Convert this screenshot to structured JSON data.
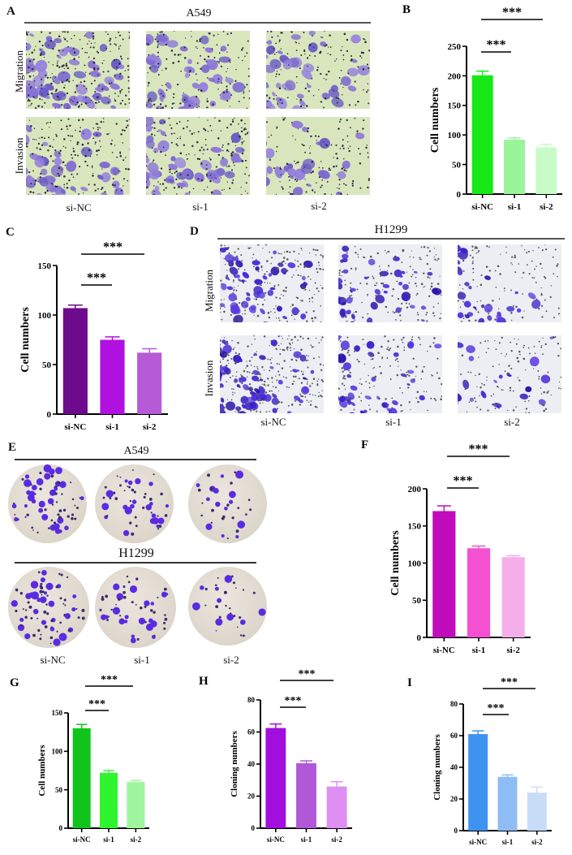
{
  "panels": {
    "A": {
      "letter": "A",
      "title": "A549",
      "rows": [
        "Migration",
        "Invasion"
      ],
      "cols": [
        "si-NC",
        "si-1",
        "si-2"
      ],
      "style": "a549"
    },
    "D": {
      "letter": "D",
      "title": "H1299",
      "rows": [
        "Migration",
        "Invasion"
      ],
      "cols": [
        "si-NC",
        "si-1",
        "si-2"
      ],
      "style": "h1299"
    },
    "E": {
      "letter": "E",
      "title_top": "A549",
      "title_bottom": "H1299",
      "cols": [
        "si-NC",
        "si-1",
        "si-2"
      ]
    }
  },
  "chart_data": [
    {
      "id": "B",
      "letter": "B",
      "type": "bar",
      "categories": [
        "si-NC",
        "si-1",
        "si-2"
      ],
      "values": [
        201,
        92,
        79
      ],
      "errors": [
        7,
        3,
        5
      ],
      "ylabel": "Cell numbers",
      "xlabel": "",
      "ylim": [
        0,
        250
      ],
      "yticks": [
        0,
        50,
        100,
        150,
        200,
        250
      ],
      "colors": [
        "#18e818",
        "#99f599",
        "#c9fbc9"
      ],
      "significance": [
        {
          "from": 0,
          "to": 1,
          "label": "***"
        },
        {
          "from": 0,
          "to": 2,
          "label": "***"
        }
      ],
      "grid": false
    },
    {
      "id": "C",
      "letter": "C",
      "type": "bar",
      "categories": [
        "si-NC",
        "si-1",
        "si-2"
      ],
      "values": [
        107,
        75,
        62
      ],
      "errors": [
        3,
        3,
        4
      ],
      "ylabel": "Cell numbers",
      "xlabel": "",
      "ylim": [
        0,
        150
      ],
      "yticks": [
        0,
        50,
        100,
        150
      ],
      "colors": [
        "#6e0a8c",
        "#b010e0",
        "#b65ad8"
      ],
      "significance": [
        {
          "from": 0,
          "to": 1,
          "label": "***"
        },
        {
          "from": 0,
          "to": 2,
          "label": "***"
        }
      ],
      "grid": false
    },
    {
      "id": "F",
      "letter": "F",
      "type": "bar",
      "categories": [
        "si-NC",
        "si-1",
        "si-2"
      ],
      "values": [
        170,
        120,
        108
      ],
      "errors": [
        7,
        3,
        2
      ],
      "ylabel": "Cell numbers",
      "xlabel": "",
      "ylim": [
        0,
        200
      ],
      "yticks": [
        0,
        50,
        100,
        150,
        200
      ],
      "colors": [
        "#c00cba",
        "#f54fd2",
        "#f6aeea"
      ],
      "significance": [
        {
          "from": 0,
          "to": 1,
          "label": "***"
        },
        {
          "from": 0,
          "to": 2,
          "label": "***"
        }
      ],
      "grid": false
    },
    {
      "id": "G",
      "letter": "G",
      "type": "bar",
      "categories": [
        "si-NC",
        "si-1",
        "si-2"
      ],
      "values": [
        130,
        72,
        60
      ],
      "errors": [
        5,
        3,
        2
      ],
      "ylabel": "Cell numbers",
      "xlabel": "",
      "ylim": [
        0,
        150
      ],
      "yticks": [
        0,
        50,
        100,
        150
      ],
      "colors": [
        "#10c41c",
        "#2ef52e",
        "#9ef59e"
      ],
      "significance": [
        {
          "from": 0,
          "to": 1,
          "label": "***"
        },
        {
          "from": 0,
          "to": 2,
          "label": "***"
        }
      ],
      "grid": false
    },
    {
      "id": "H",
      "letter": "H",
      "type": "bar",
      "categories": [
        "si-NC",
        "si-1",
        "si-2"
      ],
      "values": [
        62.5,
        40.5,
        26
      ],
      "errors": [
        2.5,
        1.5,
        3
      ],
      "ylabel": "Cloning numbers",
      "xlabel": "",
      "ylim": [
        0,
        80
      ],
      "yticks": [
        0,
        20,
        40,
        60,
        80
      ],
      "colors": [
        "#a20ede",
        "#b058d8",
        "#df8ef2"
      ],
      "significance": [
        {
          "from": 0,
          "to": 1,
          "label": "***"
        },
        {
          "from": 0,
          "to": 2,
          "label": "***"
        }
      ],
      "grid": false
    },
    {
      "id": "I",
      "letter": "I",
      "type": "bar",
      "categories": [
        "si-NC",
        "si-1",
        "si-2"
      ],
      "values": [
        61,
        34,
        24
      ],
      "errors": [
        2,
        1.2,
        3.5
      ],
      "ylabel": "Cloning numbers",
      "xlabel": "",
      "ylim": [
        0,
        80
      ],
      "yticks": [
        0,
        20,
        40,
        60,
        80
      ],
      "colors": [
        "#3f93f0",
        "#8ebdf5",
        "#c8dcf8"
      ],
      "significance": [
        {
          "from": 0,
          "to": 1,
          "label": "***"
        },
        {
          "from": 0,
          "to": 2,
          "label": "***"
        }
      ],
      "grid": false
    }
  ]
}
